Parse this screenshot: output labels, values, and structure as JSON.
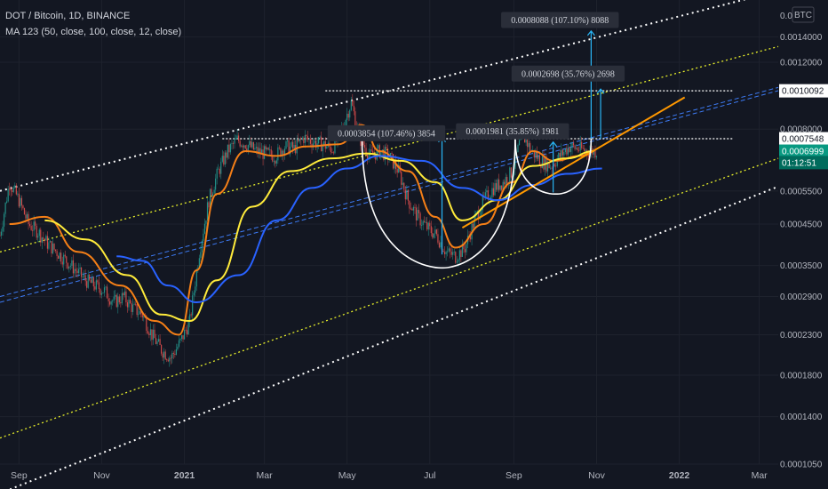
{
  "header": {
    "title": "DOT / Bitcoin, 1D, BINANCE",
    "indicator": "MA 123 (50, close, 100, close, 12, close)"
  },
  "currency_button": "BTC",
  "colors": {
    "background": "#131722",
    "grid": "#1e222d",
    "candle_up": "#26a69a",
    "candle_down": "#ef5350",
    "ma_fast": "#f57f17",
    "ma_mid": "#ffeb3b",
    "ma_slow": "#2962ff",
    "channel_outer": "#ffffff",
    "channel_inner": "#e6ee2a",
    "midline": "#3d7bf5",
    "trendline": "#ff9800",
    "cup": "#ffffff",
    "arrow": "#29b6f6",
    "current_price_tag": "#089981",
    "timer_tag": "#006b5c"
  },
  "chart_data": {
    "type": "candlestick",
    "y_scale": "log",
    "ylim": [
      0.000105,
      0.00175
    ],
    "y_tick_labels": [
      "0.0014000",
      "0.0012000",
      "0.0008000",
      "0.0005500",
      "0.0004500",
      "0.0003500",
      "0.0002900",
      "0.0002300",
      "0.0001800",
      "0.0001400",
      "0.0001050"
    ],
    "y_tick_values": [
      0.0014,
      0.0012,
      0.0008,
      0.00055,
      0.00045,
      0.00035,
      0.00029,
      0.00023,
      0.00018,
      0.00014,
      0.000105
    ],
    "y_top_label_partial": "0.00",
    "x_tick_labels": [
      "Sep",
      "Nov",
      "2021",
      "Mar",
      "May",
      "Jul",
      "Sep",
      "Nov",
      "2022",
      "Mar"
    ],
    "x_tick_dates": [
      "2020-09-01",
      "2020-11-01",
      "2021-01-01",
      "2021-03-01",
      "2021-05-01",
      "2021-07-01",
      "2021-09-01",
      "2021-11-01",
      "2022-01-01",
      "2022-03-01"
    ],
    "x_range": [
      "2020-08-18",
      "2022-03-15"
    ],
    "price_tags": [
      {
        "label": "0.0010092",
        "value": 0.0010092,
        "style": "white"
      },
      {
        "label": "0.0007548",
        "value": 0.0007548,
        "style": "white"
      },
      {
        "label": "0.0006999",
        "value": 0.0006999,
        "style": "current"
      },
      {
        "label": "01:12:51",
        "value": 0.000653,
        "style": "timer"
      }
    ],
    "horizontal_levels": [
      {
        "value": 0.0010092,
        "from": "2021-04-15",
        "to": "2022-02-10"
      },
      {
        "value": 0.0007548,
        "from": "2021-01-29",
        "to": "2022-02-10"
      }
    ],
    "annotations": [
      {
        "text": "0.0008088 (107.10%) 8088",
        "date": "2021-10-05",
        "value": 0.00155
      },
      {
        "text": "0.0002698 (35.76%) 2698",
        "date": "2021-10-11",
        "value": 0.00112
      },
      {
        "text": "0.0003854 (107.46%) 3854",
        "date": "2021-05-30",
        "value": 0.00078
      },
      {
        "text": "0.0001981 (35.85%) 1981",
        "date": "2021-08-31",
        "value": 0.00079
      }
    ],
    "arrows": [
      {
        "date": "2021-10-28",
        "from": 0.000755,
        "to": 0.00145
      },
      {
        "date": "2021-11-04",
        "from": 0.000755,
        "to": 0.00102
      },
      {
        "date": "2021-07-10",
        "from": 0.000374,
        "to": 0.00076
      },
      {
        "date": "2021-09-30",
        "from": 0.000545,
        "to": 0.00074
      }
    ],
    "price_series": {
      "dates": [
        "2020-08-18",
        "2020-08-25",
        "2020-09-01",
        "2020-09-08",
        "2020-09-15",
        "2020-09-22",
        "2020-09-29",
        "2020-10-06",
        "2020-10-13",
        "2020-10-20",
        "2020-10-27",
        "2020-11-03",
        "2020-11-10",
        "2020-11-17",
        "2020-11-24",
        "2020-12-01",
        "2020-12-08",
        "2020-12-15",
        "2020-12-22",
        "2020-12-29",
        "2021-01-05",
        "2021-01-12",
        "2021-01-19",
        "2021-01-26",
        "2021-02-02",
        "2021-02-09",
        "2021-02-16",
        "2021-02-23",
        "2021-03-02",
        "2021-03-09",
        "2021-03-16",
        "2021-03-23",
        "2021-03-30",
        "2021-04-06",
        "2021-04-13",
        "2021-04-20",
        "2021-04-27",
        "2021-05-04",
        "2021-05-11",
        "2021-05-18",
        "2021-05-25",
        "2021-06-01",
        "2021-06-08",
        "2021-06-15",
        "2021-06-22",
        "2021-06-29",
        "2021-07-06",
        "2021-07-13",
        "2021-07-20",
        "2021-07-27",
        "2021-08-03",
        "2021-08-10",
        "2021-08-17",
        "2021-08-24",
        "2021-08-31",
        "2021-09-07",
        "2021-09-14",
        "2021-09-21",
        "2021-09-28",
        "2021-10-05",
        "2021-10-12",
        "2021-10-19",
        "2021-10-26"
      ],
      "close": [
        0.00042,
        0.00058,
        0.00052,
        0.00045,
        0.00043,
        0.0004,
        0.00038,
        0.00036,
        0.00034,
        0.00032,
        0.00031,
        0.0003,
        0.00028,
        0.00029,
        0.00027,
        0.00026,
        0.00023,
        0.00021,
        0.0002,
        0.00022,
        0.00025,
        0.00038,
        0.00052,
        0.00062,
        0.0007,
        0.00075,
        0.00073,
        0.0007,
        0.00069,
        0.00068,
        0.00072,
        0.00071,
        0.00076,
        0.00074,
        0.00073,
        0.00071,
        0.0008,
        0.00094,
        0.00075,
        0.00068,
        0.0007,
        0.00068,
        0.00062,
        0.00052,
        0.00047,
        0.00044,
        0.00042,
        0.00038,
        0.00037,
        0.00039,
        0.00046,
        0.00052,
        0.00056,
        0.00058,
        0.00062,
        0.00078,
        0.0007,
        0.00066,
        0.00064,
        0.00068,
        0.00072,
        0.00071,
        0.0007
      ]
    },
    "series": [
      {
        "name": "MA 50",
        "color_key": "ma_fast",
        "dates": [
          "2020-08-25",
          "2020-09-20",
          "2020-10-15",
          "2020-11-15",
          "2020-12-10",
          "2020-12-28",
          "2021-01-10",
          "2021-01-25",
          "2021-02-15",
          "2021-03-10",
          "2021-04-01",
          "2021-04-25",
          "2021-05-12",
          "2021-05-25",
          "2021-06-15",
          "2021-07-05",
          "2021-07-20",
          "2021-08-10",
          "2021-08-31",
          "2021-09-15",
          "2021-10-01",
          "2021-10-20",
          "2021-10-30"
        ],
        "values": [
          0.00045,
          0.00047,
          0.00038,
          0.00031,
          0.00025,
          0.00023,
          0.00034,
          0.00054,
          0.0007,
          0.00068,
          0.00072,
          0.00073,
          0.00082,
          0.0007,
          0.00062,
          0.00047,
          0.00039,
          0.00045,
          0.00058,
          0.0007,
          0.00066,
          0.00068,
          0.0007
        ]
      },
      {
        "name": "MA 100",
        "color_key": "ma_mid",
        "dates": [
          "2020-09-20",
          "2020-10-20",
          "2020-11-20",
          "2020-12-15",
          "2021-01-05",
          "2021-01-25",
          "2021-02-20",
          "2021-03-20",
          "2021-04-20",
          "2021-05-15",
          "2021-06-10",
          "2021-07-05",
          "2021-07-25",
          "2021-08-20",
          "2021-09-15",
          "2021-10-10",
          "2021-10-30"
        ],
        "values": [
          0.00046,
          0.00041,
          0.00033,
          0.00026,
          0.00025,
          0.00032,
          0.0005,
          0.00062,
          0.00067,
          0.00069,
          0.00066,
          0.00058,
          0.00046,
          0.00052,
          0.00064,
          0.00067,
          0.0007
        ]
      },
      {
        "name": "MA 123",
        "color_key": "ma_slow",
        "dates": [
          "2020-11-12",
          "2020-12-01",
          "2020-12-20",
          "2021-01-10",
          "2021-02-10",
          "2021-03-10",
          "2021-04-05",
          "2021-05-01",
          "2021-05-25",
          "2021-06-25",
          "2021-07-25",
          "2021-08-20",
          "2021-09-15",
          "2021-10-10",
          "2021-11-05"
        ],
        "values": [
          0.00037,
          0.00036,
          0.00031,
          0.00028,
          0.00033,
          0.00046,
          0.00056,
          0.00063,
          0.00068,
          0.00066,
          0.00056,
          0.00052,
          0.00057,
          0.00061,
          0.00063
        ]
      }
    ],
    "channel": {
      "outer_upper": {
        "from": [
          "2020-08-18",
          0.00055
        ],
        "to": [
          "2022-03-15",
          0.00185
        ]
      },
      "inner_upper": {
        "from": [
          "2020-08-18",
          0.00038
        ],
        "to": [
          "2022-03-15",
          0.00132
        ]
      },
      "midline_a": {
        "from": [
          "2020-08-18",
          0.00029
        ],
        "to": [
          "2022-03-15",
          0.00103
        ]
      },
      "midline_b": {
        "from": [
          "2020-08-18",
          0.00028
        ],
        "to": [
          "2022-03-15",
          0.00101
        ]
      },
      "inner_lower": {
        "from": [
          "2020-08-18",
          0.000123
        ],
        "to": [
          "2022-03-15",
          0.00067
        ]
      },
      "outer_lower": {
        "from": [
          "2020-08-18",
          8.8e-05
        ],
        "to": [
          "2022-03-15",
          0.000565
        ]
      }
    },
    "trendline": {
      "from": [
        "2021-07-25",
        0.00044
      ],
      "to": [
        "2022-01-05",
        0.00097
      ]
    },
    "cups": [
      {
        "left": [
          "2021-05-12",
          0.00076
        ],
        "bottom": [
          "2021-07-10",
          0.000345
        ],
        "right": [
          "2021-09-02",
          0.00076
        ]
      },
      {
        "left": [
          "2021-09-02",
          0.00076
        ],
        "bottom": [
          "2021-10-02",
          0.00054
        ],
        "right": [
          "2021-10-28",
          0.00076
        ]
      }
    ]
  }
}
